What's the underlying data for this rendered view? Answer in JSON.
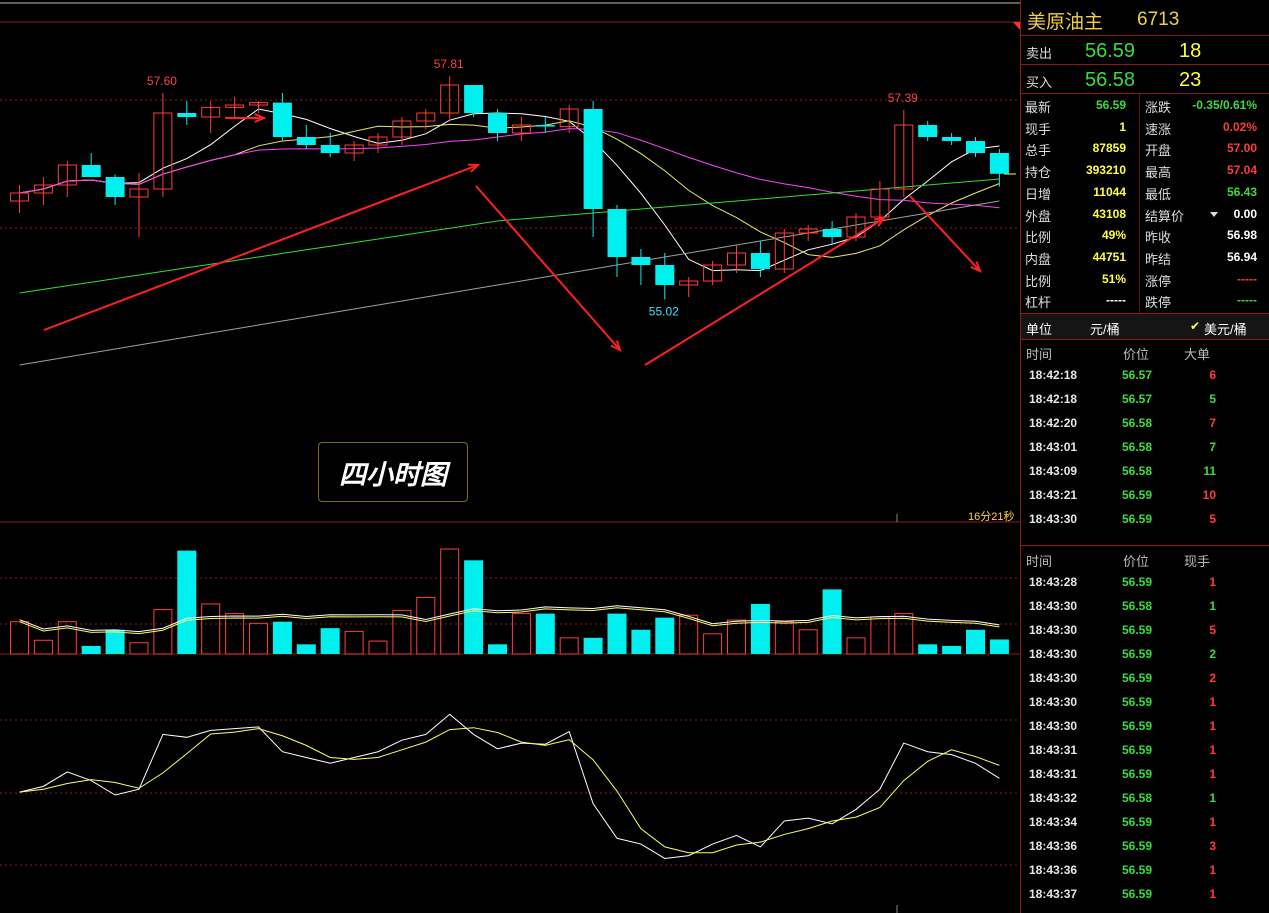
{
  "badge_label": "四小时图",
  "countdown": "16分21秒",
  "price_labels": [
    {
      "text": "57.60",
      "color": "#ff4040"
    },
    {
      "text": "57.81",
      "color": "#ff4040"
    },
    {
      "text": "55.02",
      "color": "#40e0ff"
    },
    {
      "text": "57.39",
      "color": "#ff4040"
    }
  ],
  "quote": {
    "name": "美原油主",
    "code": "6713",
    "sell": {
      "label": "卖出",
      "price": "56.59",
      "qty": "18"
    },
    "buy": {
      "label": "买入",
      "price": "56.58",
      "qty": "23"
    },
    "stats": [
      {
        "l1": "最新",
        "v1": "56.59",
        "c1": "green",
        "l2": "涨跌",
        "v2": "-0.35/0.61%",
        "c2": "green"
      },
      {
        "l1": "现手",
        "v1": "1",
        "c1": "yellow",
        "l2": "速涨",
        "v2": "0.02%",
        "c2": "red"
      },
      {
        "l1": "总手",
        "v1": "87859",
        "c1": "yellow",
        "l2": "开盘",
        "v2": "57.00",
        "c2": "red"
      },
      {
        "l1": "持仓",
        "v1": "393210",
        "c1": "yellow",
        "l2": "最高",
        "v2": "57.04",
        "c2": "red"
      },
      {
        "l1": "日增",
        "v1": "11044",
        "c1": "yellow",
        "l2": "最低",
        "v2": "56.43",
        "c2": "green"
      },
      {
        "l1": "外盘",
        "v1": "43108",
        "c1": "yellow",
        "l2": "结算价",
        "v2": "0.00",
        "c2": "white"
      },
      {
        "l1": "比例",
        "v1": "49%",
        "c1": "yellow",
        "l2": "昨收",
        "v2": "56.98",
        "c2": "white"
      },
      {
        "l1": "内盘",
        "v1": "44751",
        "c1": "yellow",
        "l2": "昨结",
        "v2": "56.94",
        "c2": "white"
      },
      {
        "l1": "比例",
        "v1": "51%",
        "c1": "yellow",
        "l2": "涨停",
        "v2": "-----",
        "c2": "red"
      },
      {
        "l1": "杠杆",
        "v1": "-----",
        "c1": "white",
        "l2": "跌停",
        "v2": "-----",
        "c2": "green"
      }
    ],
    "unit": {
      "label": "单位",
      "opt1": "元/桶",
      "opt2": "美元/桶",
      "check": "✔"
    },
    "big_orders": {
      "headers": [
        "时间",
        "价位",
        "大单"
      ],
      "rows": [
        {
          "t": "18:42:18",
          "p": "56.57",
          "v": "6",
          "c": "red"
        },
        {
          "t": "18:42:18",
          "p": "56.57",
          "v": "5",
          "c": "green"
        },
        {
          "t": "18:42:20",
          "p": "56.58",
          "v": "7",
          "c": "red"
        },
        {
          "t": "18:43:01",
          "p": "56.58",
          "v": "7",
          "c": "green"
        },
        {
          "t": "18:43:09",
          "p": "56.58",
          "v": "11",
          "c": "green"
        },
        {
          "t": "18:43:21",
          "p": "56.59",
          "v": "10",
          "c": "red"
        },
        {
          "t": "18:43:30",
          "p": "56.59",
          "v": "5",
          "c": "red"
        }
      ]
    },
    "ticks": {
      "headers": [
        "时间",
        "价位",
        "现手"
      ],
      "rows": [
        {
          "t": "18:43:28",
          "p": "56.59",
          "v": "1",
          "c": "red"
        },
        {
          "t": "18:43:30",
          "p": "56.58",
          "v": "1",
          "c": "green"
        },
        {
          "t": "18:43:30",
          "p": "56.59",
          "v": "5",
          "c": "red"
        },
        {
          "t": "18:43:30",
          "p": "56.59",
          "v": "2",
          "c": "green"
        },
        {
          "t": "18:43:30",
          "p": "56.59",
          "v": "2",
          "c": "red"
        },
        {
          "t": "18:43:30",
          "p": "56.59",
          "v": "1",
          "c": "red"
        },
        {
          "t": "18:43:30",
          "p": "56.59",
          "v": "1",
          "c": "red"
        },
        {
          "t": "18:43:31",
          "p": "56.59",
          "v": "1",
          "c": "red"
        },
        {
          "t": "18:43:31",
          "p": "56.59",
          "v": "1",
          "c": "red"
        },
        {
          "t": "18:43:32",
          "p": "56.58",
          "v": "1",
          "c": "green"
        },
        {
          "t": "18:43:34",
          "p": "56.59",
          "v": "1",
          "c": "red"
        },
        {
          "t": "18:43:36",
          "p": "56.59",
          "v": "3",
          "c": "red"
        },
        {
          "t": "18:43:36",
          "p": "56.59",
          "v": "1",
          "c": "red"
        },
        {
          "t": "18:43:37",
          "p": "56.59",
          "v": "1",
          "c": "red"
        }
      ]
    }
  },
  "colors": {
    "up": "#ff3c3c",
    "down": "#00f0f0",
    "ma5": "#ffffff",
    "ma10": "#e8e860",
    "ma20": "#ff40ff",
    "ma40": "#30e030",
    "ma60": "#a0a0a0",
    "grid": "#8b1a1a"
  },
  "chart_data": {
    "type": "candlestick",
    "candles": [
      {
        "o": 56.25,
        "h": 56.45,
        "l": 56.1,
        "c": 56.35
      },
      {
        "o": 56.35,
        "h": 56.55,
        "l": 56.2,
        "c": 56.45
      },
      {
        "o": 56.45,
        "h": 56.75,
        "l": 56.3,
        "c": 56.7
      },
      {
        "o": 56.7,
        "h": 56.85,
        "l": 56.55,
        "c": 56.55
      },
      {
        "o": 56.55,
        "h": 56.58,
        "l": 56.2,
        "c": 56.3
      },
      {
        "o": 56.3,
        "h": 56.6,
        "l": 55.8,
        "c": 56.4
      },
      {
        "o": 56.4,
        "h": 57.6,
        "l": 56.3,
        "c": 57.35
      },
      {
        "o": 57.35,
        "h": 57.5,
        "l": 57.2,
        "c": 57.3
      },
      {
        "o": 57.3,
        "h": 57.5,
        "l": 57.1,
        "c": 57.42
      },
      {
        "o": 57.42,
        "h": 57.55,
        "l": 57.3,
        "c": 57.45
      },
      {
        "o": 57.45,
        "h": 57.5,
        "l": 57.35,
        "c": 57.48
      },
      {
        "o": 57.48,
        "h": 57.6,
        "l": 57.0,
        "c": 57.05
      },
      {
        "o": 57.05,
        "h": 57.2,
        "l": 56.9,
        "c": 56.95
      },
      {
        "o": 56.95,
        "h": 57.1,
        "l": 56.8,
        "c": 56.85
      },
      {
        "o": 56.85,
        "h": 57.0,
        "l": 56.75,
        "c": 56.95
      },
      {
        "o": 56.95,
        "h": 57.1,
        "l": 56.85,
        "c": 57.05
      },
      {
        "o": 57.05,
        "h": 57.3,
        "l": 56.95,
        "c": 57.25
      },
      {
        "o": 57.25,
        "h": 57.4,
        "l": 57.15,
        "c": 57.35
      },
      {
        "o": 57.35,
        "h": 57.81,
        "l": 57.25,
        "c": 57.7
      },
      {
        "o": 57.7,
        "h": 57.7,
        "l": 57.3,
        "c": 57.35
      },
      {
        "o": 57.35,
        "h": 57.4,
        "l": 57.0,
        "c": 57.1
      },
      {
        "o": 57.1,
        "h": 57.3,
        "l": 57.0,
        "c": 57.2
      },
      {
        "o": 57.2,
        "h": 57.3,
        "l": 57.1,
        "c": 57.18
      },
      {
        "o": 57.18,
        "h": 57.45,
        "l": 57.1,
        "c": 57.4
      },
      {
        "o": 57.4,
        "h": 57.5,
        "l": 55.8,
        "c": 56.15
      },
      {
        "o": 56.15,
        "h": 56.2,
        "l": 55.3,
        "c": 55.55
      },
      {
        "o": 55.55,
        "h": 55.65,
        "l": 55.2,
        "c": 55.45
      },
      {
        "o": 55.45,
        "h": 55.6,
        "l": 55.02,
        "c": 55.2
      },
      {
        "o": 55.2,
        "h": 55.3,
        "l": 55.05,
        "c": 55.25
      },
      {
        "o": 55.25,
        "h": 55.5,
        "l": 55.2,
        "c": 55.45
      },
      {
        "o": 55.45,
        "h": 55.7,
        "l": 55.35,
        "c": 55.6
      },
      {
        "o": 55.6,
        "h": 55.75,
        "l": 55.3,
        "c": 55.4
      },
      {
        "o": 55.4,
        "h": 55.9,
        "l": 55.35,
        "c": 55.85
      },
      {
        "o": 55.85,
        "h": 55.95,
        "l": 55.75,
        "c": 55.9
      },
      {
        "o": 55.9,
        "h": 56.0,
        "l": 55.7,
        "c": 55.8
      },
      {
        "o": 55.8,
        "h": 56.1,
        "l": 55.75,
        "c": 56.05
      },
      {
        "o": 56.05,
        "h": 56.5,
        "l": 56.0,
        "c": 56.4
      },
      {
        "o": 56.4,
        "h": 57.39,
        "l": 56.3,
        "c": 57.2
      },
      {
        "o": 57.2,
        "h": 57.25,
        "l": 57.0,
        "c": 57.05
      },
      {
        "o": 57.05,
        "h": 57.1,
        "l": 56.95,
        "c": 57.0
      },
      {
        "o": 57.0,
        "h": 57.05,
        "l": 56.8,
        "c": 56.85
      },
      {
        "o": 56.85,
        "h": 56.9,
        "l": 56.43,
        "c": 56.59
      }
    ],
    "volume": [
      40,
      17,
      40,
      10,
      30,
      14,
      55,
      128,
      62,
      50,
      38,
      40,
      12,
      32,
      28,
      16,
      54,
      70,
      130,
      116,
      12,
      50,
      50,
      20,
      20,
      50,
      30,
      45,
      48,
      25,
      42,
      62,
      40,
      30,
      80,
      20,
      46,
      50,
      12,
      10,
      30,
      18
    ]
  }
}
